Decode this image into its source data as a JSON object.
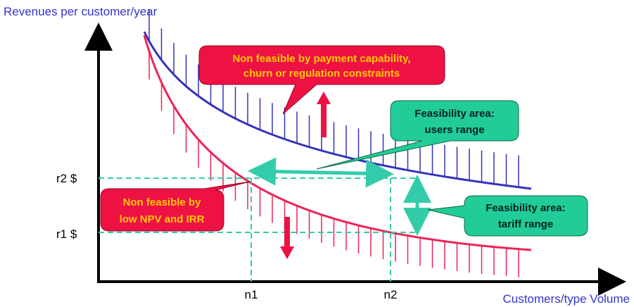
{
  "axes": {
    "y_label": "Revenues per customer/year",
    "x_label": "Customers/type Volume",
    "y_ticks": [
      "r2 $",
      "r1 $"
    ],
    "x_ticks": [
      "n1",
      "n2"
    ]
  },
  "callouts": [
    {
      "lines": [
        "Non feasible by payment capability,",
        "churn or regulation constraints"
      ]
    },
    {
      "lines": [
        "Feasibility area:",
        "users range"
      ]
    },
    {
      "lines": [
        "Non feasible by",
        "low NPV and IRR"
      ]
    },
    {
      "lines": [
        "Feasibility area:",
        "tariff range"
      ]
    }
  ]
}
